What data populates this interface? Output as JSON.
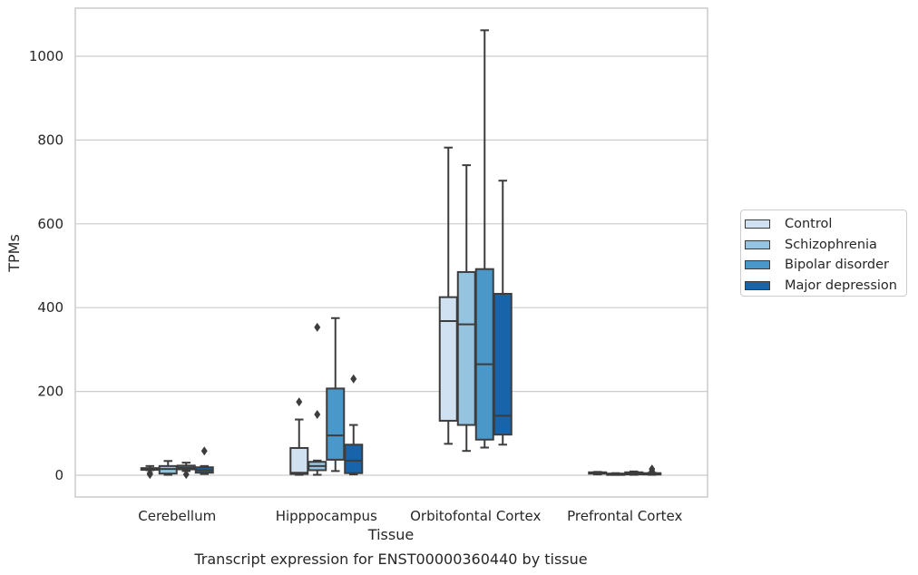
{
  "chart_data": {
    "type": "box",
    "title": "Transcript expression for ENST00000360440 by tissue",
    "xlabel": "Tissue",
    "ylabel": "TPMs",
    "ylim": [
      -50,
      1120
    ],
    "yticks": [
      0,
      200,
      400,
      600,
      800,
      1000
    ],
    "grid": "horizontal",
    "legend_position": "right",
    "categories": [
      "Cerebellum",
      "Hipppocampus",
      "Orbitofontal Cortex",
      "Prefrontal Cortex"
    ],
    "series": [
      {
        "name": "Control",
        "color": "#d0e1f2",
        "boxes": [
          {
            "whislo": 12,
            "q1": 13,
            "med": 15,
            "q3": 17,
            "whishi": 22,
            "fliers": [
              2,
              5
            ]
          },
          {
            "whislo": 1,
            "q1": 3,
            "med": 6,
            "q3": 65,
            "whishi": 133,
            "fliers": [
              175
            ]
          },
          {
            "whislo": 75,
            "q1": 130,
            "med": 368,
            "q3": 425,
            "whishi": 782,
            "fliers": []
          },
          {
            "whislo": 2,
            "q1": 4,
            "med": 5,
            "q3": 7,
            "whishi": 8,
            "fliers": []
          }
        ]
      },
      {
        "name": "Schizophrenia",
        "color": "#94c4df",
        "boxes": [
          {
            "whislo": 1,
            "q1": 4,
            "med": 15,
            "q3": 22,
            "whishi": 34,
            "fliers": []
          },
          {
            "whislo": 1,
            "q1": 12,
            "med": 22,
            "q3": 32,
            "whishi": 35,
            "fliers": [
              145,
              353
            ]
          },
          {
            "whislo": 58,
            "q1": 120,
            "med": 360,
            "q3": 485,
            "whishi": 740,
            "fliers": []
          },
          {
            "whislo": 1,
            "q1": 2,
            "med": 3,
            "q3": 4,
            "whishi": 5,
            "fliers": []
          }
        ]
      },
      {
        "name": "Bipolar disorder",
        "color": "#4a98c9",
        "boxes": [
          {
            "whislo": 10,
            "q1": 14,
            "med": 18,
            "q3": 23,
            "whishi": 30,
            "fliers": [
              2
            ]
          },
          {
            "whislo": 10,
            "q1": 37,
            "med": 95,
            "q3": 207,
            "whishi": 375,
            "fliers": []
          },
          {
            "whislo": 66,
            "q1": 85,
            "med": 265,
            "q3": 492,
            "whishi": 1062,
            "fliers": []
          },
          {
            "whislo": 1,
            "q1": 2,
            "med": 4,
            "q3": 7,
            "whishi": 9,
            "fliers": []
          }
        ]
      },
      {
        "name": "Major depression",
        "color": "#1764ab",
        "boxes": [
          {
            "whislo": 3,
            "q1": 6,
            "med": 12,
            "q3": 19,
            "whishi": 22,
            "fliers": [
              58
            ]
          },
          {
            "whislo": 2,
            "q1": 5,
            "med": 35,
            "q3": 73,
            "whishi": 120,
            "fliers": [
              230
            ]
          },
          {
            "whislo": 73,
            "q1": 97,
            "med": 142,
            "q3": 433,
            "whishi": 703,
            "fliers": []
          },
          {
            "whislo": 1,
            "q1": 2,
            "med": 3,
            "q3": 5,
            "whishi": 6,
            "fliers": [
              10,
              15
            ]
          }
        ]
      }
    ]
  }
}
